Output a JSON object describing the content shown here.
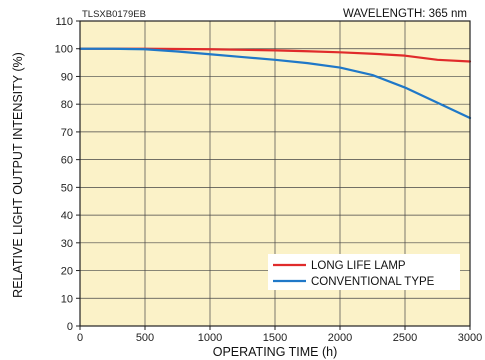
{
  "chart_data": {
    "type": "line",
    "code_label": "TLSXB0179EB",
    "annotation": "WAVELENGTH: 365 nm",
    "xlabel": "OPERATING TIME (h)",
    "ylabel": "RELATIVE LIGHT OUTPUT INTENSITY (%)",
    "xlim": [
      0,
      3000
    ],
    "ylim": [
      0,
      110
    ],
    "xticks": [
      0,
      500,
      1000,
      1500,
      2000,
      2500,
      3000
    ],
    "yticks": [
      0,
      10,
      20,
      30,
      40,
      50,
      60,
      70,
      80,
      90,
      100,
      110
    ],
    "grid": true,
    "legend_position": "lower-right",
    "series": [
      {
        "name": "LONG LIFE LAMP",
        "color": "#e02b2b",
        "x": [
          0,
          250,
          500,
          750,
          1000,
          1250,
          1500,
          1750,
          2000,
          2250,
          2500,
          2750,
          3000
        ],
        "y": [
          100,
          100,
          100,
          99.9,
          99.8,
          99.6,
          99.4,
          99.1,
          98.7,
          98.2,
          97.5,
          96.0,
          95.4
        ]
      },
      {
        "name": "CONVENTIONAL TYPE",
        "color": "#1f78c8",
        "x": [
          0,
          250,
          500,
          750,
          1000,
          1250,
          1500,
          1750,
          2000,
          2250,
          2500,
          2750,
          3000
        ],
        "y": [
          100,
          100,
          99.8,
          99.0,
          98.0,
          97.0,
          96.0,
          94.8,
          93.2,
          90.5,
          86.0,
          80.5,
          75.0
        ]
      }
    ]
  }
}
